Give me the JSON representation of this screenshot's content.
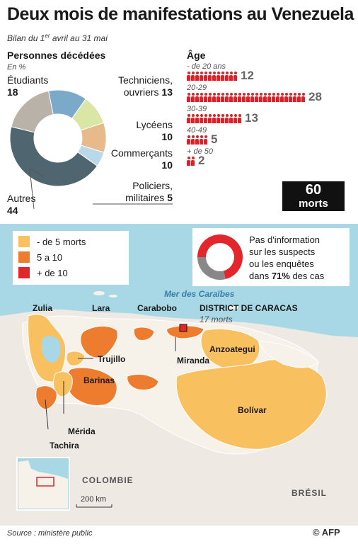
{
  "title": "Deux mois de manifestations au Venezuela",
  "subtitle_prefix": "Bilan du 1",
  "subtitle_sup": "er",
  "subtitle_suffix": " avril au 31 mai",
  "deaths": {
    "title": "Personnes décédées",
    "unit": "En %",
    "categories": [
      {
        "label": "Étudiants",
        "value": "18",
        "percent": 18,
        "color": "#b8b2a8"
      },
      {
        "label": "Techniciens, ouvriers",
        "label_line1": "Techniciens,",
        "label_line2": "ouvriers",
        "value": "13",
        "percent": 13,
        "color": "#7aa9c9"
      },
      {
        "label": "Lycéens",
        "value": "10",
        "percent": 10,
        "color": "#d9e6a6"
      },
      {
        "label": "Commerçants",
        "value": "10",
        "percent": 10,
        "color": "#e8b98a"
      },
      {
        "label": "Policiers, militaires",
        "label_line1": "Policiers,",
        "label_line2": "militaires",
        "value": "5",
        "percent": 5,
        "color": "#b9d9ea"
      },
      {
        "label": "Autres",
        "value": "44",
        "percent": 44,
        "color": "#4f6570"
      }
    ]
  },
  "age": {
    "title": "Âge",
    "groups": [
      {
        "label": "- de 20 ans",
        "count": 12
      },
      {
        "label": "20-29",
        "count": 28
      },
      {
        "label": "30-39",
        "count": 13
      },
      {
        "label": "40-49",
        "count": 5
      },
      {
        "label": "+ de 50",
        "count": 2
      }
    ]
  },
  "total": {
    "number": "60",
    "text": "morts"
  },
  "legend": [
    {
      "label": "- de 5 morts",
      "color": "#f9c05f"
    },
    {
      "label": "5 a 10",
      "color": "#ee7c2e"
    },
    {
      "label": "+ de 10",
      "color": "#e3262b"
    }
  ],
  "info": {
    "line1": "Pas d'information",
    "line2": "sur les suspects",
    "line3": "ou les enquêtes",
    "line4_prefix": "dans ",
    "line4_bold": "71%",
    "line4_suffix": " des cas",
    "percent": 71,
    "color_main": "#e3262b",
    "color_rest": "#888888"
  },
  "map": {
    "sea_label": "Mer des Caraïbes",
    "states": {
      "zulia": "Zulia",
      "lara": "Lara",
      "carabobo": "Carabobo",
      "district": "DISTRICT DE CARACAS",
      "district_note": "17 morts",
      "trujillo": "Trujillo",
      "miranda": "Miranda",
      "anzoategui": "Anzoategui",
      "barinas": "Barinas",
      "merida": "Mérida",
      "tachira": "Tachira",
      "bolivar": "Bolívar"
    },
    "countries": {
      "colombia": "COLOMBIE",
      "brazil": "BRÉSIL"
    },
    "scale": "200 km"
  },
  "source": "Source : ministère public",
  "credit": "© AFP"
}
